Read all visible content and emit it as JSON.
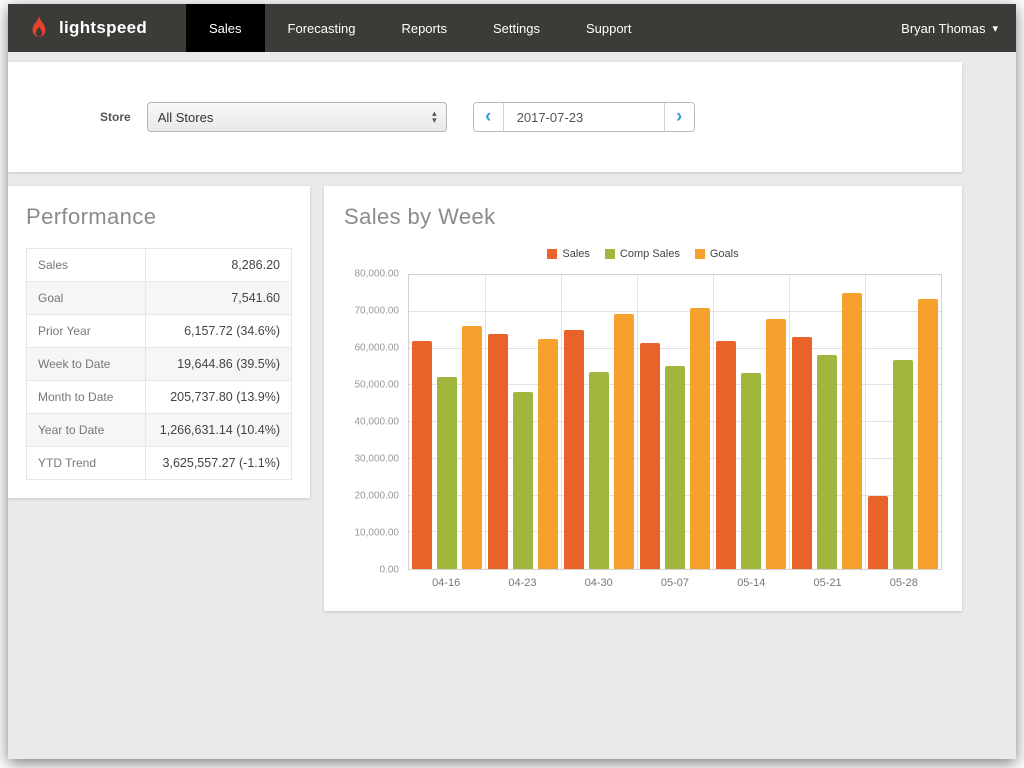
{
  "nav": {
    "brand": "lightspeed",
    "items": [
      {
        "label": "Sales",
        "active": true
      },
      {
        "label": "Forecasting",
        "active": false
      },
      {
        "label": "Reports",
        "active": false
      },
      {
        "label": "Settings",
        "active": false
      },
      {
        "label": "Support",
        "active": false
      }
    ],
    "user": "Bryan Thomas"
  },
  "icons": {
    "user_caret": "▾",
    "prev_chevron": "‹",
    "next_chevron": "›",
    "stepper_up": "▴",
    "stepper_down": "▾"
  },
  "filters": {
    "store_label": "Store",
    "store_value": "All Stores",
    "date_value": "2017-07-23"
  },
  "performance": {
    "title": "Performance",
    "rows": [
      {
        "label": "Sales",
        "value": "8,286.20"
      },
      {
        "label": "Goal",
        "value": "7,541.60"
      },
      {
        "label": "Prior Year",
        "value": "6,157.72 (34.6%)"
      },
      {
        "label": "Week to Date",
        "value": "19,644.86 (39.5%)"
      },
      {
        "label": "Month to Date",
        "value": "205,737.80 (13.9%)"
      },
      {
        "label": "Year to Date",
        "value": "1,266,631.14 (10.4%)"
      },
      {
        "label": "YTD Trend",
        "value": "3,625,557.27 (-1.1%)"
      }
    ]
  },
  "chart": {
    "title": "Sales by Week"
  },
  "chart_data": {
    "type": "bar",
    "title": "Sales by Week",
    "categories": [
      "04-16",
      "04-23",
      "04-30",
      "05-07",
      "05-14",
      "05-21",
      "05-28"
    ],
    "series": [
      {
        "name": "Sales",
        "color": "#e8622a",
        "values": [
          62000,
          64000,
          65000,
          61500,
          62000,
          63000,
          19800
        ]
      },
      {
        "name": "Comp Sales",
        "color": "#a0b63c",
        "values": [
          52300,
          48200,
          53700,
          55300,
          53300,
          58200,
          57000
        ]
      },
      {
        "name": "Goals",
        "color": "#f6a12d",
        "values": [
          66200,
          62500,
          69400,
          71000,
          67900,
          75200,
          73400
        ]
      }
    ],
    "ylim": [
      0,
      80000
    ],
    "ytick_step": 10000,
    "grid": true,
    "legend_position": "top"
  }
}
